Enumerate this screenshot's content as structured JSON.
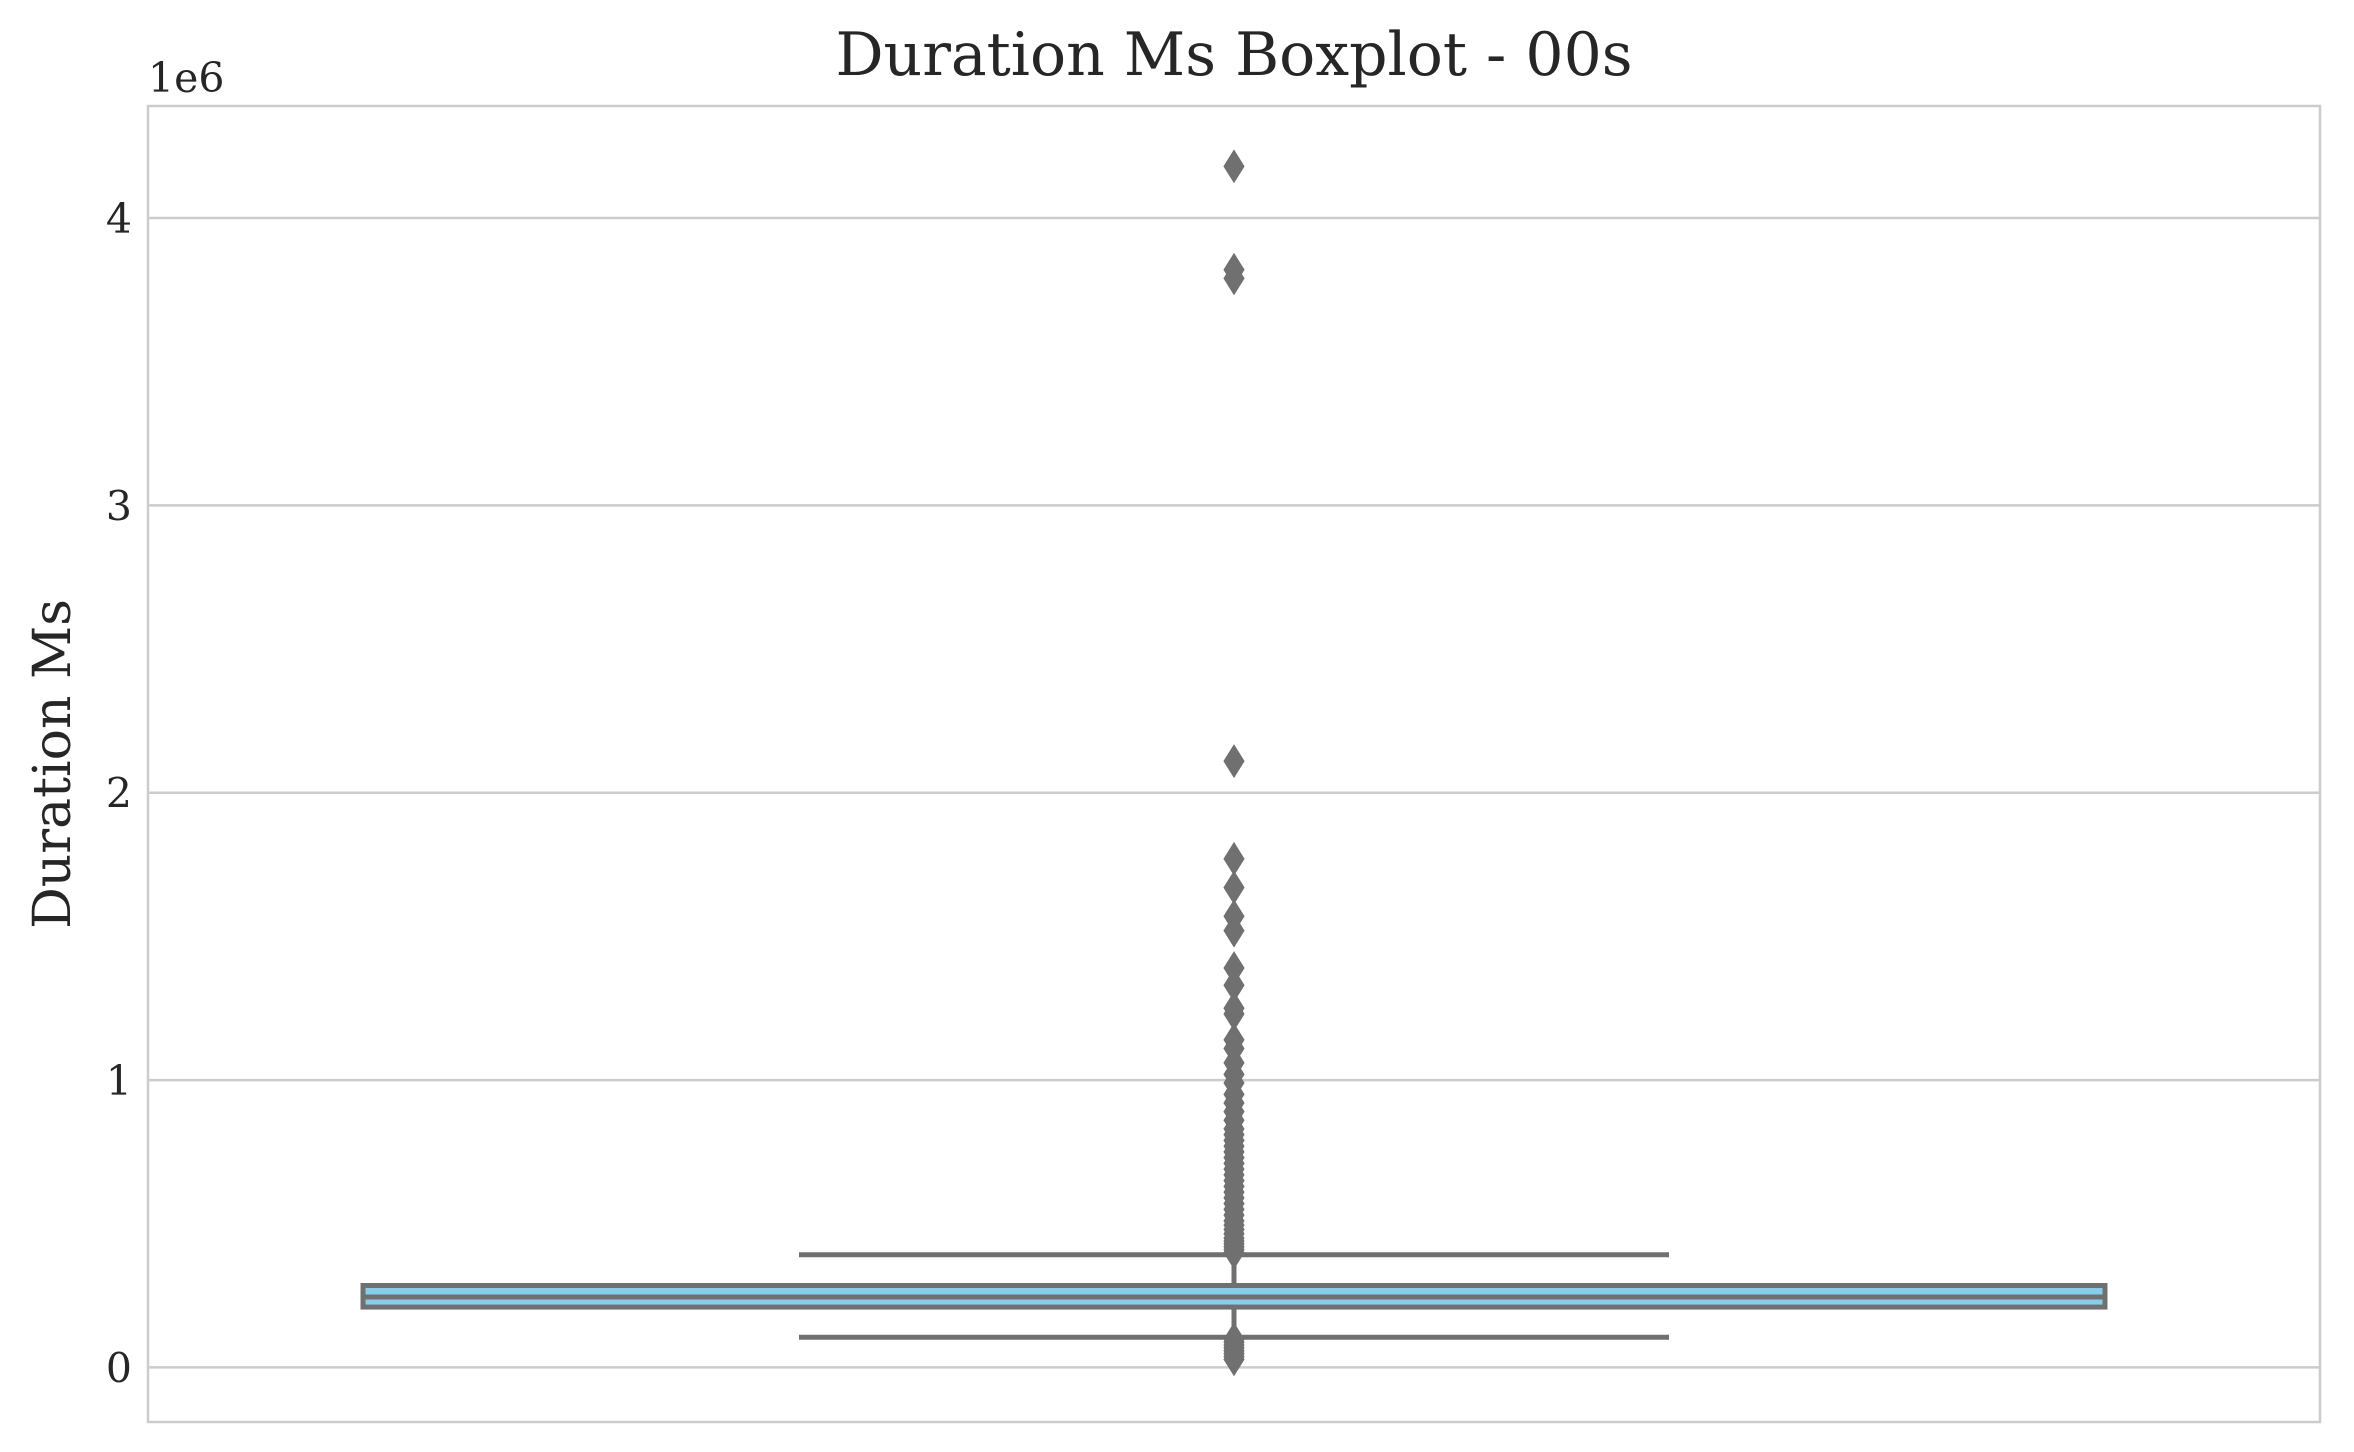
{
  "chart_data": {
    "type": "boxplot",
    "title": "Duration Ms Boxplot - 00s",
    "ylabel": "Duration Ms",
    "xlabel": "",
    "offset_label": "1e6",
    "ylim": [
      -190000,
      4390000
    ],
    "yticks": [
      0,
      1,
      2,
      3,
      4
    ],
    "ytick_labels": [
      "0",
      "1",
      "2",
      "3",
      "4"
    ],
    "grid": true,
    "box": {
      "whisker_low": 105000,
      "q1": 210000,
      "median": 245000,
      "q3": 285000,
      "whisker_high": 392000
    },
    "outliers": [
      4180000,
      3820000,
      3790000,
      2110000,
      1770000,
      1670000,
      1570000,
      1520000,
      1390000,
      1330000,
      1250000,
      1230000,
      1140000,
      1110000,
      1060000,
      1020000,
      990000,
      950000,
      920000,
      890000,
      860000,
      830000,
      810000,
      790000,
      770000,
      750000,
      730000,
      710000,
      690000,
      670000,
      650000,
      630000,
      610000,
      590000,
      570000,
      550000,
      530000,
      510000,
      495000,
      480000,
      465000,
      450000,
      440000,
      430000,
      420000,
      410000,
      400000,
      98000,
      88000,
      78000,
      68000,
      58000,
      48000,
      38000,
      28000
    ],
    "colors": {
      "box_fill": "#87ceeb",
      "box_line": "#707070",
      "grid": "#cccccc",
      "spine": "#cccccc",
      "text": "#262626"
    }
  }
}
